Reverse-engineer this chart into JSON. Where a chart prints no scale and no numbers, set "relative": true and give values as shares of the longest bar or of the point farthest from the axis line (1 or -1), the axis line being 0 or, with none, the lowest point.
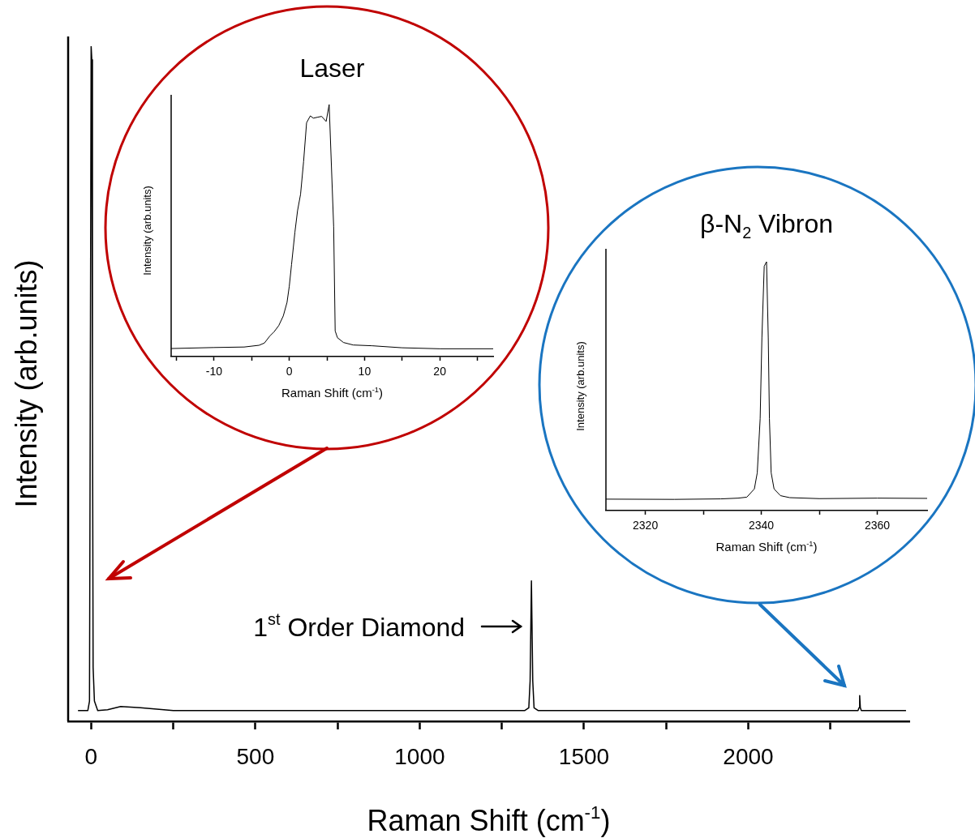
{
  "chart_data": [
    {
      "type": "line",
      "xlabel": "Raman Shift (cm$^{-1}$)",
      "ylabel": "Intensity (arb.units)",
      "relative": true,
      "xlim": [
        -70,
        2490
      ],
      "xticks": [
        0,
        {
          "value": 250,
          "label": null
        },
        500,
        {
          "value": 750,
          "label": null
        },
        1000,
        {
          "value": 1250,
          "label": null
        },
        1500,
        {
          "value": 1750,
          "label": null
        },
        2000,
        {
          "value": 2250,
          "label": null
        }
      ],
      "series": [
        {
          "color": "#000000",
          "x": [
            -40,
            -10,
            -5,
            -2,
            0,
            2,
            4,
            6,
            10,
            20,
            50,
            90,
            150,
            250,
            1320,
            1332,
            1336,
            1340,
            1344,
            1348,
            1360,
            2334,
            2337,
            2339,
            2341,
            2344,
            2480
          ],
          "values": [
            0.016,
            0.016,
            0.03,
            0.6,
            1.0,
            0.98,
            0.5,
            0.08,
            0.03,
            0.016,
            0.017,
            0.022,
            0.02,
            0.016,
            0.016,
            0.02,
            0.06,
            0.208,
            0.06,
            0.02,
            0.016,
            0.016,
            0.02,
            0.038,
            0.02,
            0.016,
            0.016
          ]
        }
      ],
      "annotations": [
        {
          "text": "1$^{st}$ Order Diamond",
          "x": 1340,
          "y": 0.208
        }
      ]
    },
    {
      "type": "line",
      "title": "Laser",
      "xlabel": "Raman Shift (cm$^{-1}$)",
      "ylabel": "Intensity (arb.units)",
      "relative": true,
      "xlim": [
        -15.7,
        27.1
      ],
      "xticks": [
        {
          "value": -15,
          "label": null
        },
        -10,
        {
          "value": -5,
          "label": null
        },
        0,
        {
          "value": 5,
          "label": null
        },
        10,
        {
          "value": 15,
          "label": null
        },
        20,
        {
          "value": 25,
          "label": null
        }
      ],
      "series": [
        {
          "color": "#000000",
          "x": [
            -15.7,
            -10,
            -6,
            -4,
            -3.3,
            -2.6,
            -2,
            -1.4,
            -0.8,
            -0.3,
            0,
            0.3,
            0.75,
            1.1,
            1.5,
            1.9,
            2.3,
            2.8,
            3.2,
            3.8,
            4.3,
            4.9,
            5.3,
            5.9,
            6.1,
            6.4,
            7.2,
            8.5,
            11,
            15,
            20,
            27.1
          ],
          "values": [
            0.032,
            0.036,
            0.038,
            0.045,
            0.054,
            0.081,
            0.099,
            0.123,
            0.161,
            0.215,
            0.279,
            0.365,
            0.494,
            0.579,
            0.644,
            0.773,
            0.928,
            0.955,
            0.946,
            0.95,
            0.953,
            0.933,
            1.0,
            0.515,
            0.102,
            0.075,
            0.056,
            0.046,
            0.043,
            0.035,
            0.031,
            0.031
          ]
        }
      ]
    },
    {
      "type": "line",
      "title": "β-N$_{2}$ Vibron",
      "xlabel": "Raman Shift (cm$^{-1}$)",
      "ylabel": "Intensity (arb.units)",
      "relative": true,
      "xlim": [
        2313.2,
        2368.6
      ],
      "xticks": [
        2320,
        {
          "value": 2330,
          "label": null
        },
        2340,
        {
          "value": 2350,
          "label": null
        },
        2360
      ],
      "series": [
        {
          "color": "#000000",
          "x": [
            2313.2,
            2325,
            2333,
            2336,
            2337.5,
            2338.8,
            2339.3,
            2339.8,
            2340.1,
            2340.5,
            2340.9,
            2341.2,
            2341.4,
            2341.7,
            2342.2,
            2343.3,
            2344.9,
            2350,
            2360,
            2368.6
          ],
          "values": [
            0.046,
            0.045,
            0.047,
            0.05,
            0.054,
            0.087,
            0.152,
            0.369,
            0.694,
            0.982,
            1.0,
            0.694,
            0.369,
            0.152,
            0.087,
            0.06,
            0.052,
            0.048,
            0.05,
            0.049
          ]
        }
      ]
    }
  ]
}
